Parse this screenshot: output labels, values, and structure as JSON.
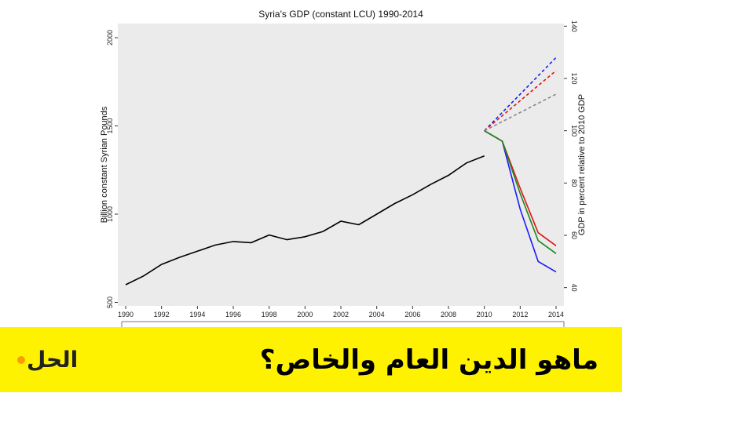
{
  "colors": {
    "plot_background": "#ebebeb",
    "historical": "#000000",
    "scenario_blue": "#1a1aff",
    "scenario_red": "#e01515",
    "scenario_green": "#1a8a1a",
    "scenario_grey": "#888888",
    "banner": "#fff200",
    "logo_dot": "#f5a000"
  },
  "chart_data": {
    "type": "line",
    "title": "Syria's GDP (constant LCU) 1990-2014",
    "ylabel": "Billion constant Syrian Pounds",
    "y2label": "GDP in percent relative to 2010 GDP",
    "xlim": [
      1990,
      2014
    ],
    "ylim": [
      480,
      2080
    ],
    "y2lim": [
      33,
      141
    ],
    "x_ticks": [
      "1990",
      "1992",
      "1994",
      "1996",
      "1998",
      "2000",
      "2002",
      "2004",
      "2006",
      "2008",
      "2010",
      "2012",
      "2014"
    ],
    "y_ticks": [
      "500",
      "1000",
      "1500",
      "2000"
    ],
    "y2_ticks": [
      "40",
      "60",
      "80",
      "100",
      "120",
      "140"
    ],
    "grid": false,
    "series": [
      {
        "axis": "left",
        "color_key": "historical",
        "style": "solid",
        "x": [
          1990,
          1991,
          1992,
          1993,
          1994,
          1995,
          1996,
          1997,
          1998,
          1999,
          2000,
          2001,
          2002,
          2003,
          2004,
          2005,
          2006,
          2007,
          2008,
          2009,
          2010
        ],
        "y": [
          600,
          650,
          715,
          755,
          790,
          825,
          845,
          838,
          882,
          855,
          872,
          902,
          960,
          940,
          1000,
          1060,
          1110,
          1168,
          1220,
          1290,
          1330
        ]
      },
      {
        "axis": "right",
        "color_key": "scenario_blue",
        "style": "dashed",
        "x": [
          2010,
          2014
        ],
        "y": [
          100,
          128
        ]
      },
      {
        "axis": "right",
        "color_key": "scenario_red",
        "style": "dashed",
        "x": [
          2010,
          2014
        ],
        "y": [
          100,
          123
        ]
      },
      {
        "axis": "right",
        "color_key": "scenario_grey",
        "style": "dashed",
        "x": [
          2010,
          2014
        ],
        "y": [
          100,
          114
        ]
      },
      {
        "axis": "right",
        "color_key": "scenario_blue",
        "style": "solid",
        "x": [
          2010,
          2011,
          2012,
          2013,
          2014
        ],
        "y": [
          100,
          96,
          70,
          50,
          46
        ]
      },
      {
        "axis": "right",
        "color_key": "scenario_red",
        "style": "solid",
        "x": [
          2010,
          2011,
          2012,
          2013,
          2014
        ],
        "y": [
          100,
          96,
          78,
          61,
          56
        ]
      },
      {
        "axis": "right",
        "color_key": "scenario_green",
        "style": "solid",
        "x": [
          2010,
          2011,
          2012,
          2013,
          2014
        ],
        "y": [
          100,
          96,
          76,
          58,
          53
        ]
      }
    ]
  },
  "banner": {
    "headline": "ماهو الدين العام والخاص؟",
    "logo_text": "الحل"
  }
}
